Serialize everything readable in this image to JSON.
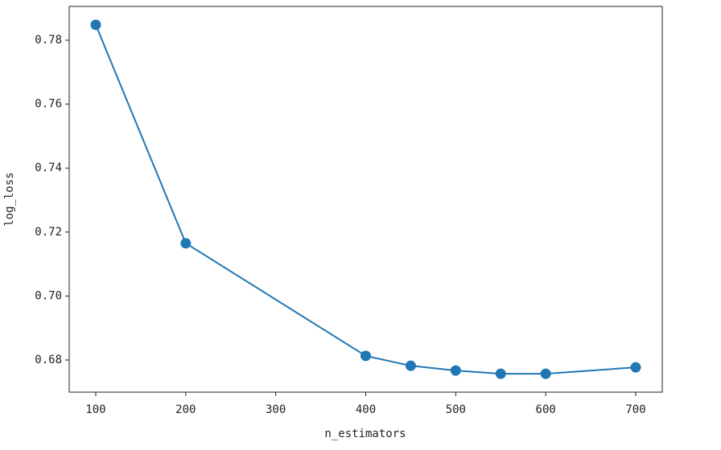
{
  "chart_data": {
    "type": "line",
    "xlabel": "n_estimators",
    "ylabel": "log_loss",
    "x": [
      100,
      200,
      400,
      450,
      500,
      550,
      600,
      700
    ],
    "series": [
      {
        "name": "log_loss",
        "color": "#1f77b4",
        "values": [
          0.7848,
          0.7165,
          0.6813,
          0.6782,
          0.6767,
          0.6757,
          0.6757,
          0.6777
        ]
      }
    ],
    "xlim": [
      70.5,
      729.5
    ],
    "xticks": [
      100,
      200,
      300,
      400,
      500,
      600,
      700
    ],
    "ylim": [
      0.66995,
      0.79055
    ],
    "yticks": [
      0.68,
      {
        "value": 0.7,
        "label": "0.70"
      },
      0.72,
      0.74,
      0.76,
      0.78
    ],
    "grid": false,
    "markers": true
  }
}
